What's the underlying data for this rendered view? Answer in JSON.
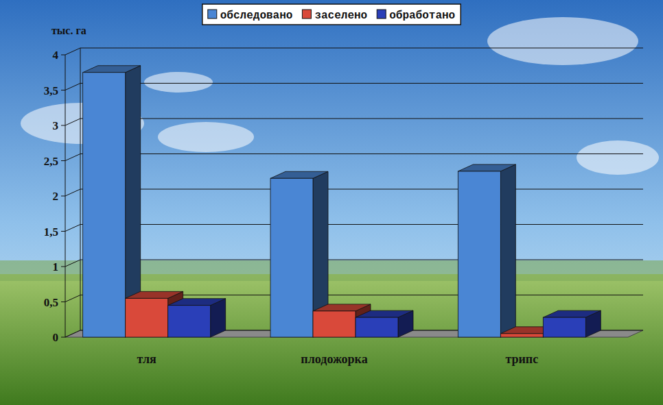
{
  "chart_data": {
    "type": "bar",
    "ylabel": "тыс. га",
    "categories": [
      "тля",
      "плодожорка",
      "трипс"
    ],
    "series": [
      {
        "name": "обследовано",
        "color": "#4a86d4",
        "values": [
          3.75,
          2.25,
          2.35
        ]
      },
      {
        "name": "заселено",
        "color": "#d9493a",
        "values": [
          0.55,
          0.37,
          0.05
        ]
      },
      {
        "name": "обработано",
        "color": "#2a3fb8",
        "values": [
          0.45,
          0.28,
          0.28
        ]
      }
    ],
    "ylim": [
      0,
      4
    ],
    "yticks": [
      0,
      {
        "value": 0.5,
        "label": "0,5"
      },
      1,
      {
        "value": 1.5,
        "label": "1,5"
      },
      2,
      {
        "value": 2.5,
        "label": "2,5"
      },
      3,
      {
        "value": 3.5,
        "label": "3,5"
      },
      4
    ],
    "grid": true,
    "legend": "top"
  }
}
